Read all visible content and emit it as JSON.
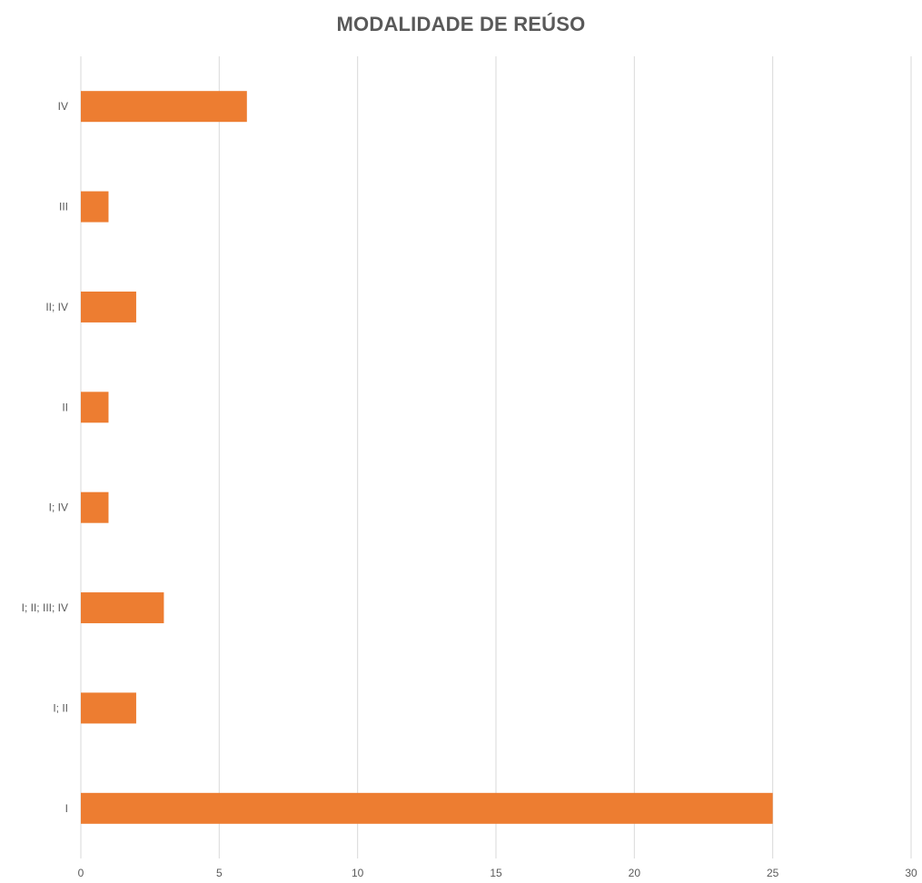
{
  "chart_data": {
    "type": "bar",
    "orientation": "horizontal",
    "title": "MODALIDADE DE REÚSO",
    "categories": [
      "I",
      "I; II",
      "I; II; III; IV",
      "I; IV",
      "II",
      "II; IV",
      "III",
      "IV"
    ],
    "values": [
      25,
      2,
      3,
      1,
      1,
      2,
      1,
      6
    ],
    "xlabel": "",
    "ylabel": "",
    "xlim": [
      0,
      30
    ],
    "xticks": [
      0,
      5,
      10,
      15,
      20,
      25,
      30
    ],
    "grid": true,
    "legend": "none",
    "bar_color": "#ED7D31",
    "grid_color": "#D9D9D9"
  }
}
